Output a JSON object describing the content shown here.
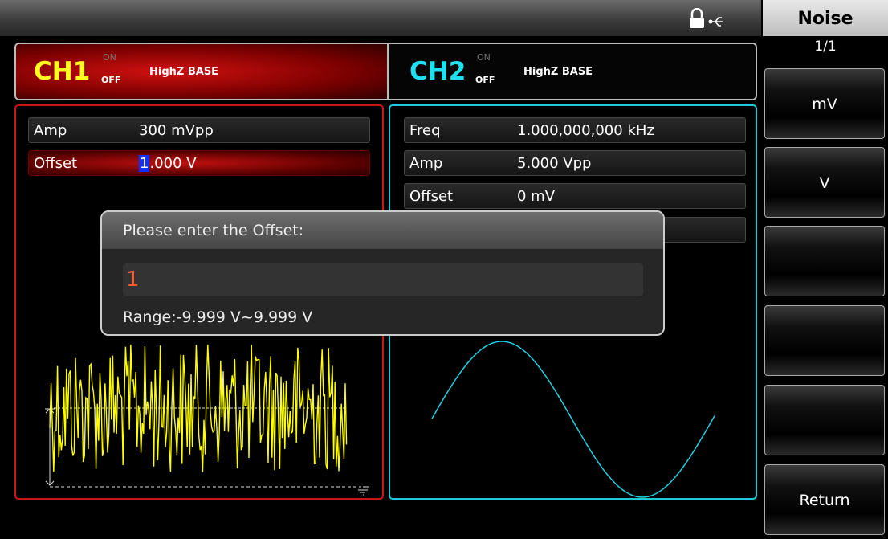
{
  "status_bar": {
    "menu_title": "Noise",
    "page": "1/1"
  },
  "softkeys": [
    "mV",
    "V",
    "Return"
  ],
  "channels": [
    {
      "name": "CH1",
      "on": "ON",
      "off": "OFF",
      "load": "HighZ BASE"
    },
    {
      "name": "CH2",
      "on": "ON",
      "off": "OFF",
      "load": "HighZ BASE"
    }
  ],
  "ch1_params": [
    {
      "label": "Amp",
      "value": "300 mVpp"
    },
    {
      "label": "Offset",
      "value_cursor": "1",
      "value_rest": ".000 V"
    }
  ],
  "ch2_params": [
    {
      "label": "Freq",
      "value": "1.000,000,000 kHz"
    },
    {
      "label": "Amp",
      "value": "5.000 Vpp"
    },
    {
      "label": "Offset",
      "value": "0 mV"
    }
  ],
  "dialog": {
    "prompt": "Please enter the Offset:",
    "input": "1",
    "range": "Range:-9.999 V~9.999 V"
  }
}
